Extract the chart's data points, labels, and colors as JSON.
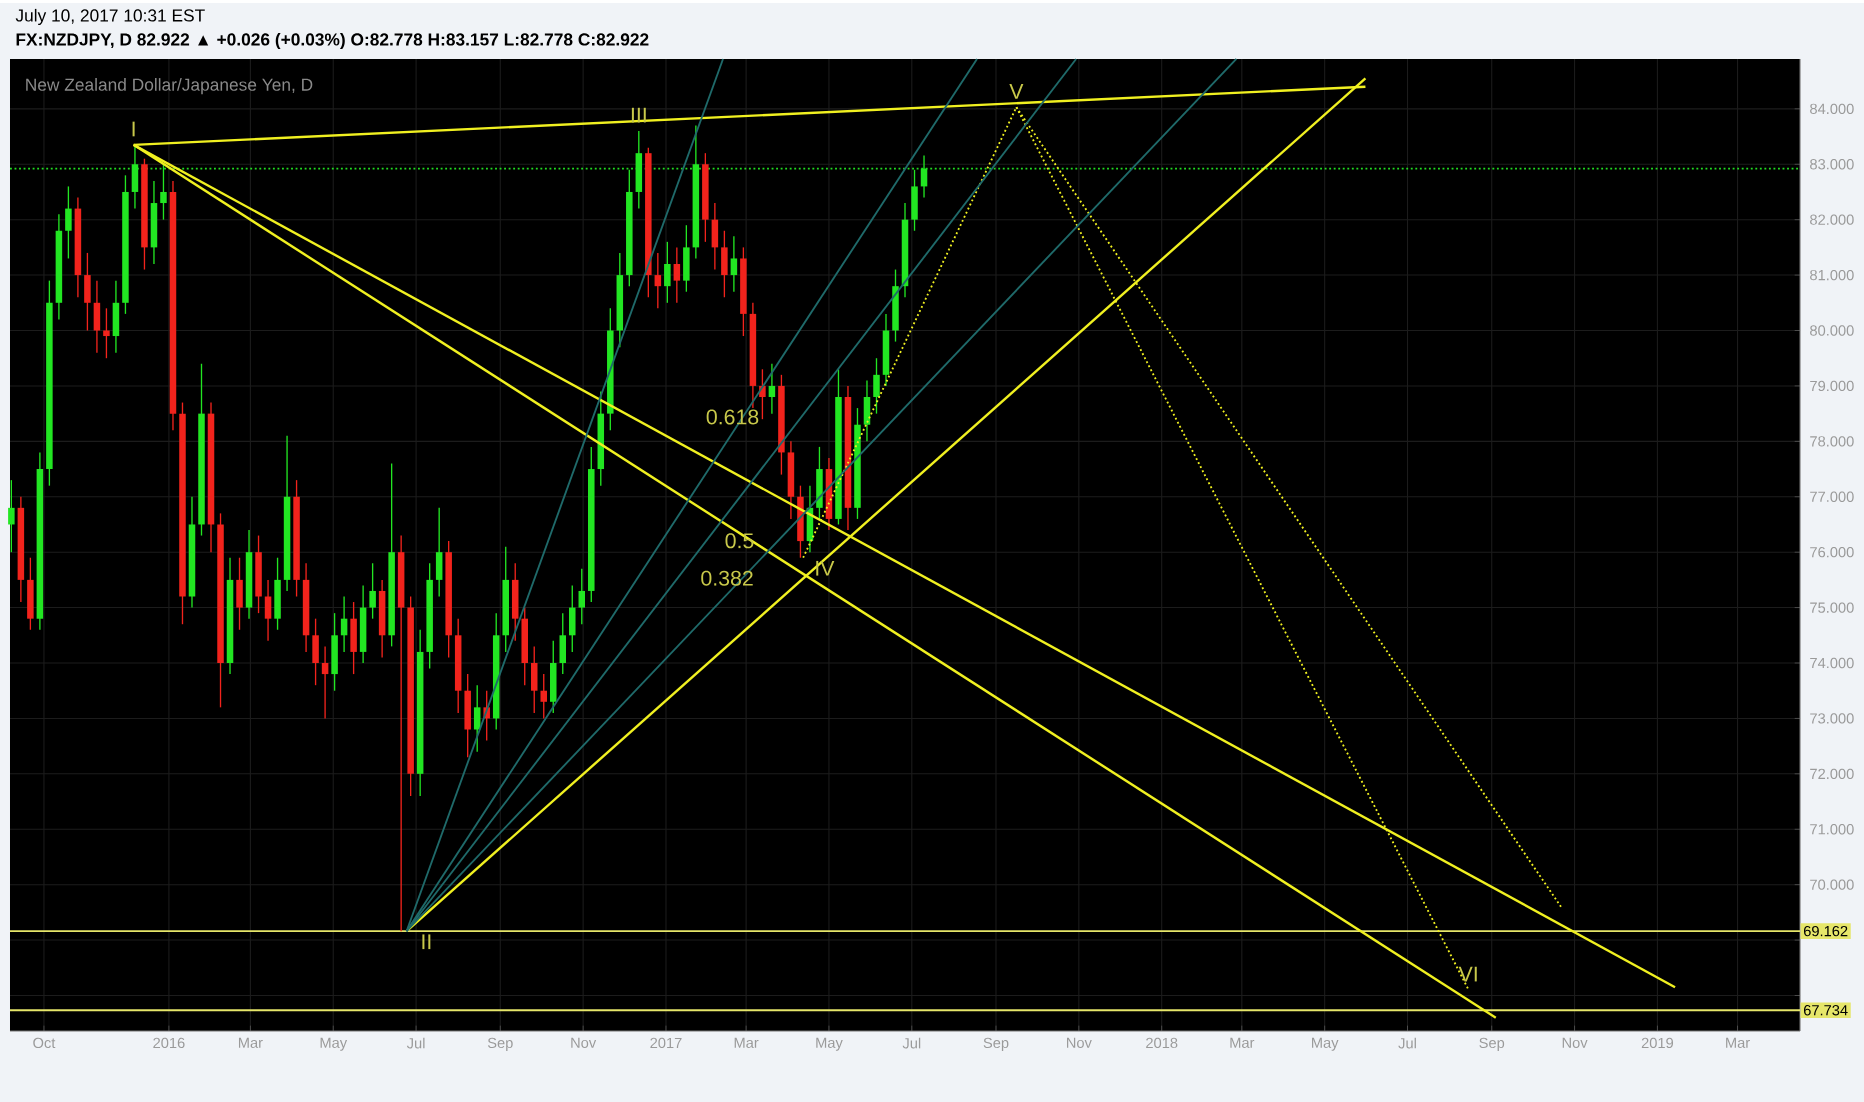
{
  "chart_data": {
    "type": "candlestick",
    "title": "New Zealand Dollar/Japanese Yen, D",
    "subtitle": "FX:NZDJPY, D  82.922 ▲ +0.026 (+0.03%) O:82.778 H:83.157 L:82.778 C:82.922",
    "x": [
      "2015-09-07",
      "2015-09-14",
      "2015-09-21",
      "2015-09-28",
      "2015-10-05",
      "2015-10-12",
      "2015-10-19",
      "2015-10-26",
      "2015-11-02",
      "2015-11-09",
      "2015-11-16",
      "2015-11-23",
      "2015-11-30",
      "2015-12-07",
      "2015-12-14",
      "2015-12-21",
      "2015-12-28",
      "2016-01-04",
      "2016-01-11",
      "2016-01-18",
      "2016-01-25",
      "2016-02-01",
      "2016-02-08",
      "2016-02-15",
      "2016-02-22",
      "2016-02-29",
      "2016-03-07",
      "2016-03-14",
      "2016-03-21",
      "2016-03-28",
      "2016-04-04",
      "2016-04-11",
      "2016-04-18",
      "2016-04-25",
      "2016-05-02",
      "2016-05-09",
      "2016-05-16",
      "2016-05-23",
      "2016-05-30",
      "2016-06-06",
      "2016-06-13",
      "2016-06-20",
      "2016-06-27",
      "2016-07-04",
      "2016-07-11",
      "2016-07-18",
      "2016-07-25",
      "2016-08-01",
      "2016-08-08",
      "2016-08-15",
      "2016-08-22",
      "2016-08-29",
      "2016-09-05",
      "2016-09-12",
      "2016-09-19",
      "2016-09-26",
      "2016-10-03",
      "2016-10-10",
      "2016-10-17",
      "2016-10-24",
      "2016-10-31",
      "2016-11-07",
      "2016-11-14",
      "2016-11-21",
      "2016-11-28",
      "2016-12-05",
      "2016-12-12",
      "2016-12-19",
      "2016-12-26",
      "2017-01-02",
      "2017-01-09",
      "2017-01-16",
      "2017-01-23",
      "2017-01-30",
      "2017-02-06",
      "2017-02-13",
      "2017-02-20",
      "2017-02-27",
      "2017-03-06",
      "2017-03-13",
      "2017-03-20",
      "2017-03-27",
      "2017-04-03",
      "2017-04-10",
      "2017-04-17",
      "2017-04-24",
      "2017-05-01",
      "2017-05-08",
      "2017-05-15",
      "2017-05-22",
      "2017-05-29",
      "2017-06-05",
      "2017-06-12",
      "2017-06-19",
      "2017-06-26",
      "2017-07-03",
      "2017-07-10"
    ],
    "ohlc": [
      [
        76.5,
        77.3,
        76.0,
        76.8
      ],
      [
        76.8,
        77.0,
        75.1,
        75.5
      ],
      [
        75.5,
        75.9,
        74.6,
        74.8
      ],
      [
        74.8,
        77.8,
        74.6,
        77.5
      ],
      [
        77.5,
        80.9,
        77.2,
        80.5
      ],
      [
        80.5,
        82.1,
        80.2,
        81.8
      ],
      [
        81.8,
        82.6,
        81.3,
        82.2
      ],
      [
        82.2,
        82.4,
        80.6,
        81.0
      ],
      [
        81.0,
        81.4,
        80.0,
        80.5
      ],
      [
        80.5,
        80.9,
        79.6,
        80.0
      ],
      [
        80.0,
        80.4,
        79.5,
        79.9
      ],
      [
        79.9,
        80.9,
        79.6,
        80.5
      ],
      [
        80.5,
        82.8,
        80.3,
        82.5
      ],
      [
        82.5,
        83.35,
        82.2,
        83.0
      ],
      [
        83.0,
        83.1,
        81.1,
        81.5
      ],
      [
        81.5,
        82.7,
        81.2,
        82.3
      ],
      [
        82.3,
        83.0,
        82.0,
        82.5
      ],
      [
        82.5,
        82.7,
        78.2,
        78.5
      ],
      [
        78.5,
        78.7,
        74.7,
        75.2
      ],
      [
        75.2,
        77.0,
        75.0,
        76.5
      ],
      [
        76.5,
        79.4,
        76.3,
        78.5
      ],
      [
        78.5,
        78.7,
        76.0,
        76.5
      ],
      [
        76.5,
        76.7,
        73.2,
        74.0
      ],
      [
        74.0,
        75.9,
        73.8,
        75.5
      ],
      [
        75.5,
        75.9,
        74.6,
        75.0
      ],
      [
        75.0,
        76.4,
        74.8,
        76.0
      ],
      [
        76.0,
        76.3,
        74.9,
        75.2
      ],
      [
        75.2,
        75.5,
        74.4,
        74.8
      ],
      [
        74.8,
        75.9,
        74.6,
        75.5
      ],
      [
        75.5,
        78.1,
        75.3,
        77.0
      ],
      [
        77.0,
        77.3,
        75.2,
        75.5
      ],
      [
        75.5,
        75.8,
        74.2,
        74.5
      ],
      [
        74.5,
        74.8,
        73.6,
        74.0
      ],
      [
        74.0,
        74.3,
        73.0,
        73.8
      ],
      [
        73.8,
        74.9,
        73.5,
        74.5
      ],
      [
        74.5,
        75.2,
        74.2,
        74.8
      ],
      [
        74.8,
        75.1,
        73.8,
        74.2
      ],
      [
        74.2,
        75.4,
        74.0,
        75.0
      ],
      [
        75.0,
        75.8,
        74.8,
        75.3
      ],
      [
        75.3,
        75.5,
        74.1,
        74.5
      ],
      [
        74.5,
        77.6,
        74.3,
        76.0
      ],
      [
        76.0,
        76.3,
        69.16,
        75.0
      ],
      [
        75.0,
        75.2,
        71.6,
        72.0
      ],
      [
        72.0,
        74.6,
        71.6,
        74.2
      ],
      [
        74.2,
        75.8,
        73.9,
        75.5
      ],
      [
        75.5,
        76.8,
        75.2,
        76.0
      ],
      [
        76.0,
        76.2,
        74.1,
        74.5
      ],
      [
        74.5,
        74.8,
        73.1,
        73.5
      ],
      [
        73.5,
        73.8,
        72.3,
        72.8
      ],
      [
        72.8,
        73.6,
        72.4,
        73.2
      ],
      [
        73.2,
        73.5,
        72.6,
        73.0
      ],
      [
        73.0,
        74.9,
        72.8,
        74.5
      ],
      [
        74.5,
        76.1,
        74.2,
        75.5
      ],
      [
        75.5,
        75.8,
        74.4,
        74.8
      ],
      [
        74.8,
        75.0,
        73.6,
        74.0
      ],
      [
        74.0,
        74.3,
        73.1,
        73.5
      ],
      [
        73.5,
        73.8,
        73.0,
        73.3
      ],
      [
        73.3,
        74.4,
        73.1,
        74.0
      ],
      [
        74.0,
        74.9,
        73.8,
        74.5
      ],
      [
        74.5,
        75.4,
        74.2,
        75.0
      ],
      [
        75.0,
        75.7,
        74.7,
        75.3
      ],
      [
        75.3,
        77.9,
        75.1,
        77.5
      ],
      [
        77.5,
        78.9,
        77.2,
        78.5
      ],
      [
        78.5,
        80.4,
        78.2,
        80.0
      ],
      [
        80.0,
        81.4,
        79.7,
        81.0
      ],
      [
        81.0,
        82.9,
        80.8,
        82.5
      ],
      [
        82.5,
        83.6,
        82.2,
        83.2
      ],
      [
        83.2,
        83.3,
        80.6,
        81.0
      ],
      [
        81.0,
        81.4,
        80.4,
        80.8
      ],
      [
        80.8,
        81.6,
        80.5,
        81.2
      ],
      [
        81.2,
        81.5,
        80.5,
        80.9
      ],
      [
        80.9,
        81.9,
        80.7,
        81.5
      ],
      [
        81.5,
        83.7,
        81.3,
        83.0
      ],
      [
        83.0,
        83.2,
        81.6,
        82.0
      ],
      [
        82.0,
        82.3,
        81.1,
        81.5
      ],
      [
        81.5,
        81.8,
        80.6,
        81.0
      ],
      [
        81.0,
        81.7,
        80.7,
        81.3
      ],
      [
        81.3,
        81.5,
        79.9,
        80.3
      ],
      [
        80.3,
        80.5,
        78.6,
        79.0
      ],
      [
        79.0,
        79.3,
        78.4,
        78.8
      ],
      [
        78.8,
        79.4,
        78.5,
        79.0
      ],
      [
        79.0,
        79.2,
        77.4,
        77.8
      ],
      [
        77.8,
        78.0,
        76.6,
        77.0
      ],
      [
        77.0,
        77.2,
        75.9,
        76.2
      ],
      [
        76.2,
        77.2,
        76.0,
        76.8
      ],
      [
        76.8,
        77.9,
        76.6,
        77.5
      ],
      [
        77.5,
        77.7,
        76.4,
        76.6
      ],
      [
        76.6,
        79.3,
        76.5,
        78.8
      ],
      [
        78.8,
        79.0,
        76.4,
        76.8
      ],
      [
        76.8,
        78.6,
        76.6,
        78.3
      ],
      [
        78.3,
        79.1,
        78.0,
        78.8
      ],
      [
        78.8,
        79.5,
        78.5,
        79.2
      ],
      [
        79.2,
        80.3,
        79.0,
        80.0
      ],
      [
        80.0,
        81.1,
        79.8,
        80.8
      ],
      [
        80.8,
        82.3,
        80.6,
        82.0
      ],
      [
        82.0,
        82.9,
        81.8,
        82.6
      ],
      [
        82.6,
        83.157,
        82.4,
        82.922
      ]
    ],
    "colors": [
      "#22e622",
      "#f2231c",
      "#f2231c",
      "#22e622",
      "#22e622",
      "#22e622",
      "#22e622",
      "#f2231c",
      "#f2231c",
      "#f2231c",
      "#f2231c",
      "#22e622",
      "#22e622",
      "#22e622",
      "#f2231c",
      "#22e622",
      "#22e622",
      "#f2231c",
      "#f2231c",
      "#22e622",
      "#22e622",
      "#f2231c",
      "#f2231c",
      "#22e622",
      "#f2231c",
      "#22e622",
      "#f2231c",
      "#f2231c",
      "#22e622",
      "#22e622",
      "#f2231c",
      "#f2231c",
      "#f2231c",
      "#f2231c",
      "#22e622",
      "#22e622",
      "#f2231c",
      "#22e622",
      "#22e622",
      "#f2231c",
      "#22e622",
      "#f2231c",
      "#f2231c",
      "#22e622",
      "#22e622",
      "#22e622",
      "#f2231c",
      "#f2231c",
      "#f2231c",
      "#22e622",
      "#f2231c",
      "#22e622",
      "#22e622",
      "#f2231c",
      "#f2231c",
      "#f2231c",
      "#f2231c",
      "#22e622",
      "#22e622",
      "#22e622",
      "#22e622",
      "#22e622",
      "#22e622",
      "#22e622",
      "#22e622",
      "#22e622",
      "#22e622",
      "#f2231c",
      "#f2231c",
      "#22e622",
      "#f2231c",
      "#22e622",
      "#22e622",
      "#f2231c",
      "#f2231c",
      "#f2231c",
      "#22e622",
      "#f2231c",
      "#f2231c",
      "#f2231c",
      "#22e622",
      "#f2231c",
      "#f2231c",
      "#f2231c",
      "#22e622",
      "#22e622",
      "#f2231c",
      "#22e622",
      "#f2231c",
      "#22e622",
      "#22e622",
      "#22e622",
      "#22e622",
      "#22e622",
      "#22e622",
      "#22e622",
      "#22e622"
    ],
    "series": [
      {
        "type": "line",
        "color": "#f0f020",
        "line_style": "solid",
        "x": [
          "2015-12-06",
          "2018-05-31"
        ],
        "values": [
          83.35,
          84.4
        ]
      },
      {
        "type": "line",
        "color": "#f0f020",
        "line_style": "solid",
        "x": [
          "2015-12-06",
          "2019-01-14"
        ],
        "values": [
          83.35,
          68.15
        ]
      },
      {
        "type": "line",
        "color": "#f0f020",
        "line_style": "solid",
        "x": [
          "2015-12-06",
          "2018-09-04"
        ],
        "values": [
          83.35,
          67.6
        ]
      },
      {
        "type": "line",
        "color": "#f0f020",
        "line_style": "solid",
        "x": [
          "2016-06-24",
          "2018-05-31"
        ],
        "values": [
          69.16,
          84.55
        ]
      },
      {
        "type": "line",
        "color": "#f0f020",
        "line_style": "dotted",
        "x": [
          "2017-04-12",
          "2017-09-16"
        ],
        "values": [
          75.9,
          84.03
        ]
      },
      {
        "type": "line",
        "color": "#f0f020",
        "line_style": "dotted",
        "x": [
          "2017-09-16",
          "2018-08-15"
        ],
        "values": [
          84.03,
          68.1
        ]
      },
      {
        "type": "line",
        "color": "#f0f020",
        "line_style": "dotted",
        "x": [
          "2017-09-16",
          "2018-10-22"
        ],
        "values": [
          84.03,
          69.6
        ]
      },
      {
        "type": "line",
        "color": "#1f6a6a",
        "line_style": "solid",
        "x": [
          "2016-06-24",
          "2017-02-12"
        ],
        "values": [
          69.16,
          84.9
        ]
      },
      {
        "type": "line",
        "color": "#1f6a6a",
        "line_style": "solid",
        "x": [
          "2016-06-24",
          "2017-08-18"
        ],
        "values": [
          69.16,
          84.9
        ]
      },
      {
        "type": "line",
        "color": "#1f6a6a",
        "line_style": "solid",
        "x": [
          "2016-06-24",
          "2017-10-30"
        ],
        "values": [
          69.16,
          84.9
        ]
      },
      {
        "type": "line",
        "color": "#1f6a6a",
        "line_style": "solid",
        "x": [
          "2016-06-24",
          "2018-02-25"
        ],
        "values": [
          69.16,
          84.9
        ]
      }
    ],
    "ref_lines": [
      {
        "axis": "y",
        "value": 82.922,
        "color": "#22dd22",
        "line_style": "dotted"
      },
      {
        "axis": "y",
        "value": 69.162,
        "label": "69.162",
        "color": "#e6e66a",
        "line_style": "solid"
      },
      {
        "axis": "y",
        "value": 67.734,
        "label": "67.734",
        "color": "#e6e66a",
        "line_style": "solid"
      }
    ],
    "annotations": [
      "July 10, 2017 10:31 EST",
      {
        "text": "I",
        "x": "2015-12-06",
        "y": 83.35
      },
      {
        "text": "II",
        "x": "2016-06-24",
        "y": 69.16
      },
      {
        "text": "III",
        "x": "2016-12-12",
        "y": 83.6
      },
      {
        "text": "IV",
        "x": "2017-04-10",
        "y": 75.9
      },
      {
        "text": "V",
        "x": "2017-09-16",
        "y": 84.03
      },
      {
        "text": "VI",
        "x": "2018-08-15",
        "y": 68.1
      },
      {
        "text": "0.618",
        "x": "2017-02-19",
        "y": 78.15
      },
      {
        "text": "0.5",
        "x": "2017-02-03",
        "y": 76.4
      },
      {
        "text": "0.382",
        "x": "2017-02-15",
        "y": 75.24
      }
    ],
    "xlim": [
      "2015-09-06",
      "2019-04-16"
    ],
    "xticks": [
      {
        "value": "2015-10-01",
        "label": "Oct"
      },
      {
        "value": "2016-01-01",
        "label": "2016"
      },
      {
        "value": "2016-03-01",
        "label": "Mar"
      },
      {
        "value": "2016-05-01",
        "label": "May"
      },
      {
        "value": "2016-07-01",
        "label": "Jul"
      },
      {
        "value": "2016-09-01",
        "label": "Sep"
      },
      {
        "value": "2016-11-01",
        "label": "Nov"
      },
      {
        "value": "2017-01-01",
        "label": "2017"
      },
      {
        "value": "2017-03-01",
        "label": "Mar"
      },
      {
        "value": "2017-05-01",
        "label": "May"
      },
      {
        "value": "2017-07-01",
        "label": "Jul"
      },
      {
        "value": "2017-09-01",
        "label": "Sep"
      },
      {
        "value": "2017-11-01",
        "label": "Nov"
      },
      {
        "value": "2018-01-01",
        "label": "2018"
      },
      {
        "value": "2018-03-01",
        "label": "Mar"
      },
      {
        "value": "2018-05-01",
        "label": "May"
      },
      {
        "value": "2018-07-01",
        "label": "Jul"
      },
      {
        "value": "2018-09-01",
        "label": "Sep"
      },
      {
        "value": "2018-11-01",
        "label": "Nov"
      },
      {
        "value": "2019-01-01",
        "label": "2019"
      },
      {
        "value": "2019-03-01",
        "label": "Mar"
      }
    ],
    "ylim": [
      67.36,
      84.9
    ],
    "yticks": [
      {
        "value": 68,
        "label": null
      },
      {
        "value": 69,
        "label": null
      },
      {
        "value": 70,
        "label": "70.000"
      },
      {
        "value": 71,
        "label": "71.000"
      },
      {
        "value": 72,
        "label": "72.000"
      },
      {
        "value": 73,
        "label": "73.000"
      },
      {
        "value": 74,
        "label": "74.000"
      },
      {
        "value": 75,
        "label": "75.000"
      },
      {
        "value": 76,
        "label": "76.000"
      },
      {
        "value": 77,
        "label": "77.000"
      },
      {
        "value": 78,
        "label": "78.000"
      },
      {
        "value": 79,
        "label": "79.000"
      },
      {
        "value": 80,
        "label": "80.000"
      },
      {
        "value": 81,
        "label": "81.000"
      },
      {
        "value": 82,
        "label": "82.000"
      },
      {
        "value": 83,
        "label": "83.000"
      },
      {
        "value": 84,
        "label": "84.000"
      }
    ],
    "grid": true
  }
}
